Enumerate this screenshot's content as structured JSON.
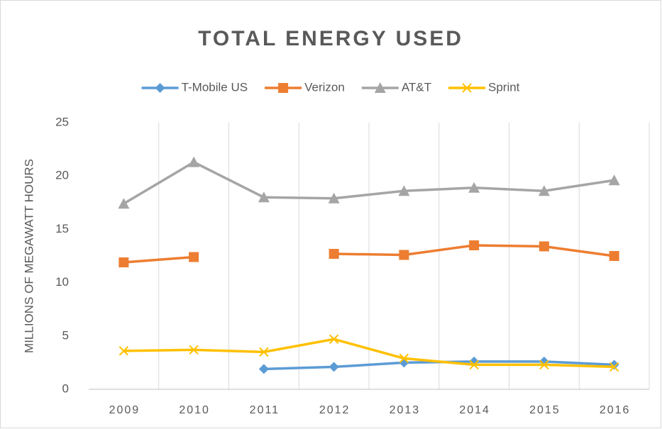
{
  "chart_data": {
    "type": "line",
    "title": "TOTAL ENERGY USED",
    "y_label": "MILLIONS OF MEGAWATT HOURS",
    "categories": [
      "2009",
      "2010",
      "2011",
      "2012",
      "2013",
      "2014",
      "2015",
      "2016"
    ],
    "series": [
      {
        "name": "T-Mobile US",
        "color": "#5b9bd5",
        "marker": "diamond",
        "values": [
          null,
          null,
          1.9,
          2.1,
          2.5,
          2.6,
          2.6,
          2.3
        ]
      },
      {
        "name": "Verizon",
        "color": "#ed7d31",
        "marker": "square",
        "values": [
          11.9,
          12.4,
          null,
          12.7,
          12.6,
          13.5,
          13.4,
          12.5
        ]
      },
      {
        "name": "AT&T",
        "color": "#a5a5a5",
        "marker": "triangle",
        "values": [
          17.4,
          21.3,
          18.0,
          17.9,
          18.6,
          18.9,
          18.6,
          19.6
        ]
      },
      {
        "name": "Sprint",
        "color": "#ffc000",
        "marker": "x",
        "values": [
          3.6,
          3.7,
          3.5,
          4.7,
          2.9,
          2.3,
          2.3,
          2.1
        ]
      }
    ],
    "ylim": [
      0,
      25
    ],
    "yticks": [
      0,
      5,
      10,
      15,
      20,
      25
    ],
    "xgrid": true,
    "legend": "top"
  }
}
